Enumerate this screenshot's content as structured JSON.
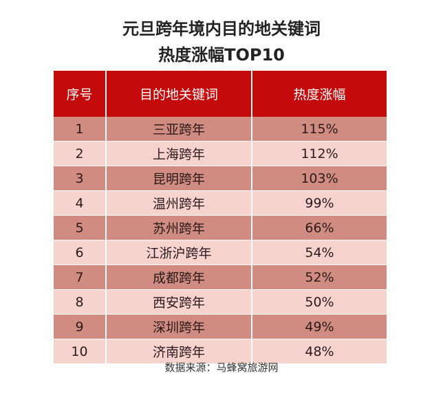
{
  "title_line1": "元旦跨年境内目的地关键词",
  "title_line2": "热度涨幅TOP10",
  "chart_data": {
    "type": "table",
    "columns": [
      "序号",
      "目的地关键词",
      "热度涨幅"
    ],
    "rows": [
      [
        "1",
        "三亚跨年",
        "115%"
      ],
      [
        "2",
        "上海跨年",
        "112%"
      ],
      [
        "3",
        "昆明跨年",
        "103%"
      ],
      [
        "4",
        "温州跨年",
        "99%"
      ],
      [
        "5",
        "苏州跨年",
        "66%"
      ],
      [
        "6",
        "江浙沪跨年",
        "54%"
      ],
      [
        "7",
        "成都跨年",
        "52%"
      ],
      [
        "8",
        "西安跨年",
        "50%"
      ],
      [
        "9",
        "深圳跨年",
        "49%"
      ],
      [
        "10",
        "济南跨年",
        "48%"
      ]
    ]
  },
  "source": "数据来源：马蜂窝旅游网",
  "colors": {
    "header": "#c40a0a",
    "row_dark": "#d08c80",
    "row_light": "#f7d3cf"
  }
}
